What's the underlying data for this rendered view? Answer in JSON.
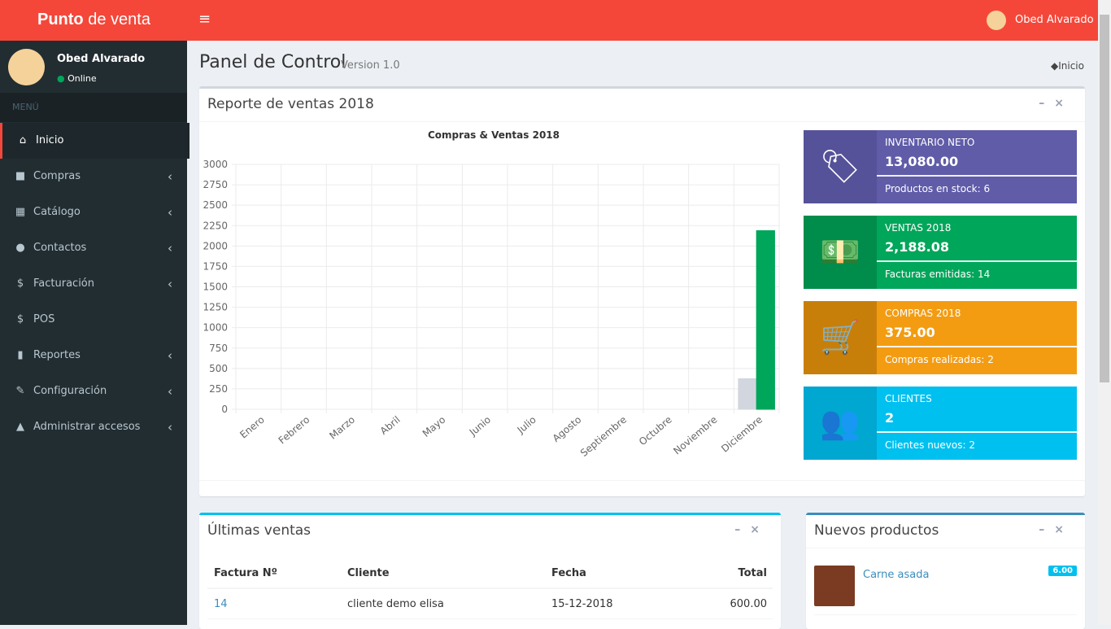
{
  "header": {
    "brand_bold": "Punto",
    "brand_rest": "de venta",
    "user": "Obed Alvarado"
  },
  "sidebar": {
    "user": "Obed Alvarado",
    "status": "Online",
    "menu_header": "MENÚ",
    "items": [
      "Inicio",
      "Compras",
      "Catálogo",
      "Contactos",
      "Facturación",
      "POS",
      "Reportes",
      "Configuración",
      "Administrar accesos"
    ]
  },
  "page": {
    "title": "Panel de Control",
    "subtitle": "Version 1.0",
    "breadcrumb": "Inicio"
  },
  "report_box": {
    "title": "Reporte de ventas 2018"
  },
  "chart_data": {
    "type": "bar",
    "title": "Compras & Ventas 2018",
    "categories": [
      "Enero",
      "Febrero",
      "Marzo",
      "Abril",
      "Mayo",
      "Junio",
      "Julio",
      "Agosto",
      "Septiembre",
      "Octubre",
      "Noviembre",
      "Diciembre"
    ],
    "series": [
      {
        "color": "#d2d6de",
        "values": [
          0,
          0,
          0,
          0,
          0,
          0,
          0,
          0,
          0,
          0,
          0,
          375
        ]
      },
      {
        "color": "#00a65a",
        "values": [
          0,
          0,
          0,
          0,
          0,
          0,
          0,
          0,
          0,
          0,
          0,
          2188.08
        ]
      }
    ],
    "ylim": [
      0,
      3000
    ],
    "yticks": [
      0,
      250,
      500,
      750,
      1000,
      1250,
      1500,
      1750,
      2000,
      2250,
      2500,
      2750,
      3000
    ],
    "grid": true
  },
  "info_boxes": [
    {
      "label": "INVENTARIO NETO",
      "value": "13,080.00",
      "footer": "Productos en stock: 6"
    },
    {
      "label": "VENTAS 2018",
      "value": "2,188.08",
      "footer": "Facturas emitidas: 14"
    },
    {
      "label": "COMPRAS 2018",
      "value": "375.00",
      "footer": "Compras realizadas: 2"
    },
    {
      "label": "CLIENTES",
      "value": "2",
      "footer": "Clientes nuevos: 2"
    }
  ],
  "sales_box": {
    "title": "Últimas ventas",
    "columns": [
      "Factura Nº",
      "Cliente",
      "Fecha",
      "Total"
    ],
    "rows": [
      [
        "14",
        "cliente demo elisa",
        "15-12-2018",
        "600.00"
      ]
    ]
  },
  "products_box": {
    "title": "Nuevos productos",
    "items": [
      {
        "name": "Carne asada",
        "price": "6.00"
      }
    ]
  }
}
